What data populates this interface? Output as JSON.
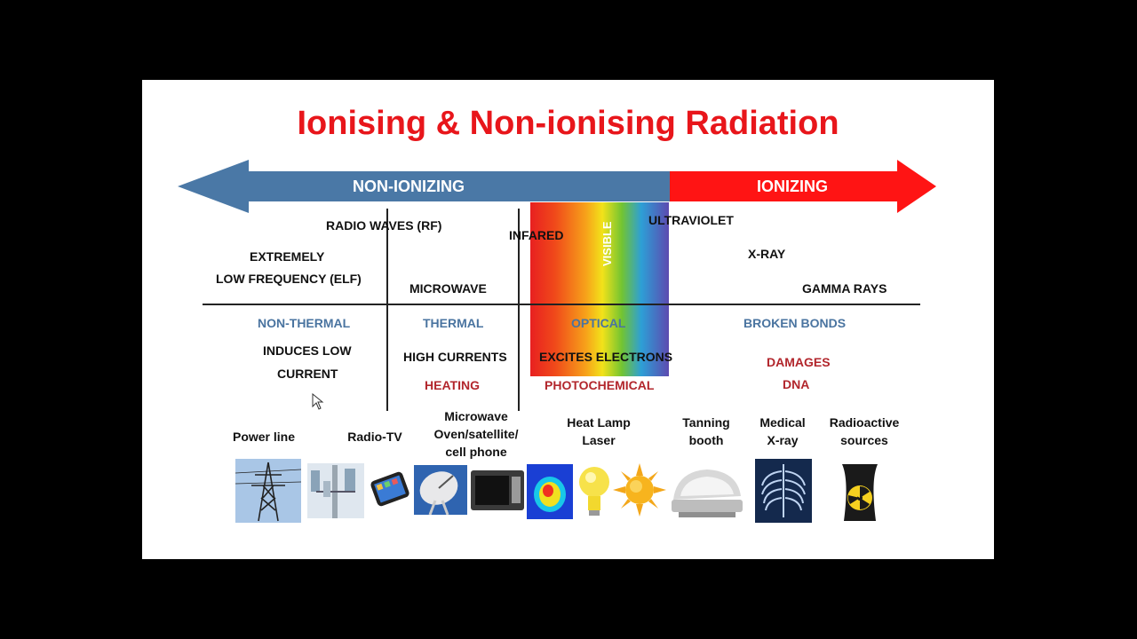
{
  "title": "Ionising & Non-ionising Radiation",
  "arrow": {
    "left_label": "NON-IONIZING",
    "right_label": "IONIZING",
    "left_color": "#4a78a6",
    "right_color": "#ff1414"
  },
  "bands": {
    "radio_waves": "RADIO WAVES (RF)",
    "elf_line1": "EXTREMELY",
    "elf_line2": "LOW FREQUENCY (ELF)",
    "microwave": "MICROWAVE",
    "infrared": "INFARED",
    "visible": "VISIBLE",
    "ultraviolet": "ULTRAVIOLET",
    "xray": "X-RAY",
    "gamma": "GAMMA RAYS"
  },
  "effects": {
    "non_thermal": "NON-THERMAL",
    "induces_line1": "INDUCES LOW",
    "induces_line2": "CURRENT",
    "thermal": "THERMAL",
    "high_currents": "HIGH CURRENTS",
    "heating": "HEATING",
    "optical": "OPTICAL",
    "excites": "EXCITES ELECTRONS",
    "photochemical": "PHOTOCHEMICAL",
    "broken_bonds": "BROKEN BONDS",
    "damages": "DAMAGES",
    "dna": "DNA"
  },
  "sources": {
    "power_line": "Power line",
    "radio_tv": "Radio-TV",
    "microwave_1": "Microwave",
    "microwave_2": "Oven/satellite/",
    "microwave_3": "cell phone",
    "heat_lamp_1": "Heat Lamp",
    "heat_lamp_2": "Laser",
    "tanning_1": "Tanning",
    "tanning_2": "booth",
    "medical_1": "Medical",
    "medical_2": "X-ray",
    "radioactive_1": "Radioactive",
    "radioactive_2": "sources"
  },
  "icons": [
    "power-line-tower-icon",
    "radio-tower-icon",
    "cell-phone-icon",
    "satellite-dish-icon",
    "microwave-oven-icon",
    "thermal-image-icon",
    "light-bulb-icon",
    "sun-icon",
    "tanning-bed-icon",
    "chest-xray-icon",
    "radiation-hazard-icon",
    "mouse-cursor-icon"
  ]
}
